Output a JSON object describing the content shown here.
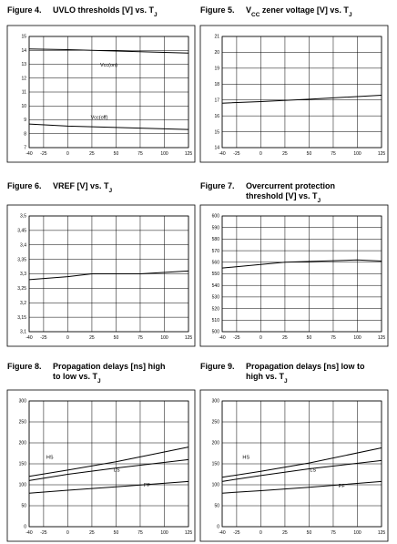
{
  "chart_data": [
    {
      "type": "line",
      "label": "Figure 4.",
      "title": [
        [
          "UVLO thresholds [V] vs. T",
          "J"
        ]
      ],
      "x": [
        -40,
        0,
        50,
        125
      ],
      "xlim": [
        -40,
        125
      ],
      "xticks": [
        -40,
        -25,
        0,
        25,
        50,
        75,
        100,
        125
      ],
      "ylim": [
        7,
        15
      ],
      "yticks": [
        7,
        8,
        9,
        10,
        11,
        12,
        13,
        14,
        15
      ],
      "grid": true,
      "color": "#000000",
      "series": [
        {
          "name": "Vcc(on)",
          "values": [
            14.1,
            14.05,
            13.95,
            13.8
          ]
        },
        {
          "name": "Vcc(off)",
          "values": [
            8.7,
            8.55,
            8.45,
            8.3
          ]
        }
      ]
    },
    {
      "type": "line",
      "label": "Figure 5.",
      "title": [
        [
          "V",
          "CC",
          " zener voltage [V] vs. T",
          "J"
        ]
      ],
      "x": [
        -40,
        0,
        50,
        125
      ],
      "xlim": [
        -40,
        125
      ],
      "xticks": [
        -40,
        -25,
        0,
        25,
        50,
        75,
        100,
        125
      ],
      "ylim": [
        14,
        21
      ],
      "yticks": [
        14,
        15,
        16,
        17,
        18,
        19,
        20,
        21
      ],
      "grid": true,
      "color": "#000000",
      "series": [
        {
          "values": [
            16.8,
            16.9,
            17.05,
            17.3
          ]
        }
      ]
    },
    {
      "type": "line",
      "label": "Figure 6.",
      "title": [
        [
          "VREF [V] vs. T",
          "J"
        ]
      ],
      "x": [
        -40,
        0,
        25,
        75,
        125
      ],
      "xlim": [
        -40,
        125
      ],
      "xticks": [
        -40,
        -25,
        0,
        25,
        50,
        75,
        100,
        125
      ],
      "ylim": [
        3.1,
        3.5
      ],
      "yticks": [
        {
          "value": 3.1,
          "label": "3,1"
        },
        {
          "value": 3.15,
          "label": "3,15"
        },
        {
          "value": 3.2,
          "label": "3,2"
        },
        {
          "value": 3.25,
          "label": "3,25"
        },
        {
          "value": 3.3,
          "label": "3,3"
        },
        {
          "value": 3.35,
          "label": "3,35"
        },
        {
          "value": 3.4,
          "label": "3,4"
        },
        {
          "value": 3.45,
          "label": "3,45"
        },
        {
          "value": 3.5,
          "label": "3,5"
        }
      ],
      "grid": true,
      "color": "#000000",
      "series": [
        {
          "values": [
            3.28,
            3.29,
            3.3,
            3.3,
            3.31
          ]
        }
      ]
    },
    {
      "type": "line",
      "label": "Figure 7.",
      "title": [
        [
          "Overcurrent protection"
        ],
        [
          "threshold [V] vs. T",
          "J"
        ]
      ],
      "x": [
        -40,
        25,
        100,
        125
      ],
      "xlim": [
        -40,
        125
      ],
      "xticks": [
        -40,
        -25,
        0,
        25,
        50,
        75,
        100,
        125
      ],
      "ylim": [
        500,
        600
      ],
      "yticks": [
        500,
        510,
        520,
        530,
        540,
        550,
        560,
        570,
        580,
        590,
        600
      ],
      "grid": true,
      "color": "#000000",
      "series": [
        {
          "values": [
            555,
            560,
            562,
            561
          ]
        }
      ]
    },
    {
      "type": "line",
      "label": "Figure 8.",
      "title": [
        [
          "Propagation delays [ns] high"
        ],
        [
          "to low vs. T",
          "J"
        ]
      ],
      "x": [
        -40,
        0,
        50,
        125
      ],
      "xlim": [
        -40,
        125
      ],
      "xticks": [
        -40,
        -25,
        0,
        25,
        50,
        75,
        100,
        125
      ],
      "ylim": [
        0,
        300
      ],
      "yticks": [
        0,
        50,
        100,
        150,
        200,
        250,
        300
      ],
      "grid": true,
      "color": "#000000",
      "series": [
        {
          "name": "HS",
          "values": [
            120,
            135,
            155,
            190
          ]
        },
        {
          "name": "LS",
          "values": [
            110,
            125,
            140,
            160
          ]
        },
        {
          "name": "PF",
          "values": [
            80,
            87,
            95,
            108
          ]
        }
      ]
    },
    {
      "type": "line",
      "label": "Figure 9.",
      "title": [
        [
          "Propagation delays [ns] low to"
        ],
        [
          "high vs. T",
          "J"
        ]
      ],
      "x": [
        -40,
        0,
        50,
        125
      ],
      "xlim": [
        -40,
        125
      ],
      "xticks": [
        -40,
        -25,
        0,
        25,
        50,
        75,
        100,
        125
      ],
      "ylim": [
        0,
        300
      ],
      "yticks": [
        0,
        50,
        100,
        150,
        200,
        250,
        300
      ],
      "grid": true,
      "color": "#000000",
      "series": [
        {
          "name": "HS",
          "values": [
            118,
            132,
            152,
            188
          ]
        },
        {
          "name": "LS",
          "values": [
            108,
            122,
            138,
            158
          ]
        },
        {
          "name": "PF",
          "values": [
            80,
            86,
            94,
            108
          ]
        }
      ]
    }
  ]
}
